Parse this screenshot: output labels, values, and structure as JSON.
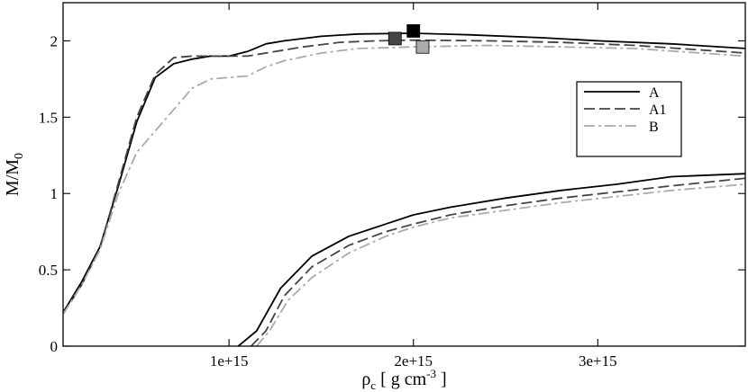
{
  "chart_data": {
    "type": "line",
    "xlabel": "ρc [ g cm-3 ]",
    "xlabel_parts": {
      "main": "ρ",
      "sub": "c",
      "pre": " [ g cm",
      "sup": "-3",
      "post": " ]"
    },
    "ylabel": "M/M0",
    "ylabel_parts": {
      "main": "M/M",
      "sub": "0"
    },
    "xlim": [
      100000000000000.0,
      3800000000000000.0
    ],
    "ylim": [
      0,
      2.25
    ],
    "xticks": [
      {
        "value": 1000000000000000.0,
        "label": "1e+15"
      },
      {
        "value": 2000000000000000.0,
        "label": "2e+15"
      },
      {
        "value": 3000000000000000.0,
        "label": "3e+15"
      }
    ],
    "yticks": [
      {
        "value": 0,
        "label": "0"
      },
      {
        "value": 0.5,
        "label": "0.5"
      },
      {
        "value": 1,
        "label": "1"
      },
      {
        "value": 1.5,
        "label": "1.5"
      },
      {
        "value": 2,
        "label": "2"
      }
    ],
    "grid": false,
    "legend_position": "right",
    "series": [
      {
        "name": "A",
        "color": "#000000",
        "style": "solid",
        "branches": [
          {
            "x": [
              100000000000000.0,
              200000000000000.0,
              300000000000000.0,
              400000000000000.0,
              500000000000000.0,
              600000000000000.0,
              700000000000000.0,
              800000000000000.0,
              900000000000000.0,
              1000000000000000.0,
              1100000000000000.0,
              1200000000000000.0,
              1300000000000000.0,
              1500000000000000.0,
              1700000000000000.0,
              2000000000000000.0,
              2300000000000000.0,
              2700000000000000.0,
              3000000000000000.0,
              3400000000000000.0,
              3800000000000000.0
            ],
            "y": [
              0.22,
              0.42,
              0.65,
              1.05,
              1.47,
              1.76,
              1.85,
              1.88,
              1.9,
              1.9,
              1.93,
              1.98,
              2.0,
              2.03,
              2.045,
              2.05,
              2.04,
              2.02,
              2.0,
              1.98,
              1.95
            ]
          },
          {
            "x": [
              1050000000000000.0,
              1150000000000000.0,
              1280000000000000.0,
              1450000000000000.0,
              1650000000000000.0,
              1850000000000000.0,
              2000000000000000.0,
              2200000000000000.0,
              2500000000000000.0,
              2800000000000000.0,
              3100000000000000.0,
              3400000000000000.0,
              3800000000000000.0
            ],
            "y": [
              0.0,
              0.1,
              0.38,
              0.59,
              0.72,
              0.8,
              0.86,
              0.91,
              0.97,
              1.02,
              1.06,
              1.11,
              1.13
            ]
          }
        ]
      },
      {
        "name": "A1",
        "color": "#444444",
        "style": "dashed",
        "branches": [
          {
            "x": [
              100000000000000.0,
              200000000000000.0,
              300000000000000.0,
              400000000000000.0,
              500000000000000.0,
              600000000000000.0,
              700000000000000.0,
              800000000000000.0,
              900000000000000.0,
              1000000000000000.0,
              1100000000000000.0,
              1200000000000000.0,
              1400000000000000.0,
              1600000000000000.0,
              1800000000000000.0,
              2000000000000000.0,
              2400000000000000.0,
              2800000000000000.0,
              3200000000000000.0,
              3800000000000000.0
            ],
            "y": [
              0.21,
              0.4,
              0.64,
              1.07,
              1.5,
              1.78,
              1.89,
              1.9,
              1.9,
              1.9,
              1.9,
              1.92,
              1.96,
              1.99,
              2.0,
              2.005,
              2.0,
              1.99,
              1.97,
              1.92
            ]
          },
          {
            "x": [
              1120000000000000.0,
              1200000000000000.0,
              1300000000000000.0,
              1450000000000000.0,
              1650000000000000.0,
              1850000000000000.0,
              2000000000000000.0,
              2200000000000000.0,
              2500000000000000.0,
              2800000000000000.0,
              3100000000000000.0,
              3400000000000000.0,
              3800000000000000.0
            ],
            "y": [
              0.0,
              0.1,
              0.33,
              0.52,
              0.66,
              0.75,
              0.8,
              0.86,
              0.92,
              0.97,
              1.01,
              1.05,
              1.1
            ]
          }
        ]
      },
      {
        "name": "B",
        "color": "#aaaaaa",
        "style": "dashdot",
        "branches": [
          {
            "x": [
              100000000000000.0,
              200000000000000.0,
              300000000000000.0,
              400000000000000.0,
              500000000000000.0,
              600000000000000.0,
              700000000000000.0,
              800000000000000.0,
              900000000000000.0,
              1000000000000000.0,
              1100000000000000.0,
              1200000000000000.0,
              1300000000000000.0,
              1500000000000000.0,
              1700000000000000.0,
              2000000000000000.0,
              2400000000000000.0,
              2800000000000000.0,
              3200000000000000.0,
              3800000000000000.0
            ],
            "y": [
              0.21,
              0.4,
              0.63,
              1.0,
              1.27,
              1.41,
              1.55,
              1.69,
              1.75,
              1.76,
              1.77,
              1.83,
              1.87,
              1.92,
              1.95,
              1.96,
              1.97,
              1.96,
              1.95,
              1.9
            ]
          },
          {
            "x": [
              1150000000000000.0,
              1220000000000000.0,
              1320000000000000.0,
              1450000000000000.0,
              1650000000000000.0,
              1850000000000000.0,
              2000000000000000.0,
              2200000000000000.0,
              2500000000000000.0,
              2800000000000000.0,
              3100000000000000.0,
              3400000000000000.0,
              3800000000000000.0
            ],
            "y": [
              0.0,
              0.1,
              0.3,
              0.45,
              0.61,
              0.72,
              0.78,
              0.84,
              0.89,
              0.94,
              0.98,
              1.02,
              1.06
            ]
          }
        ]
      }
    ],
    "markers": [
      {
        "series": "A",
        "x": 2000000000000000.0,
        "y": 2.065,
        "color": "#000000"
      },
      {
        "series": "A1",
        "x": 1900000000000000.0,
        "y": 2.015,
        "color": "#444444"
      },
      {
        "series": "B",
        "x": 2050000000000000.0,
        "y": 1.96,
        "color": "#aaaaaa"
      }
    ]
  }
}
